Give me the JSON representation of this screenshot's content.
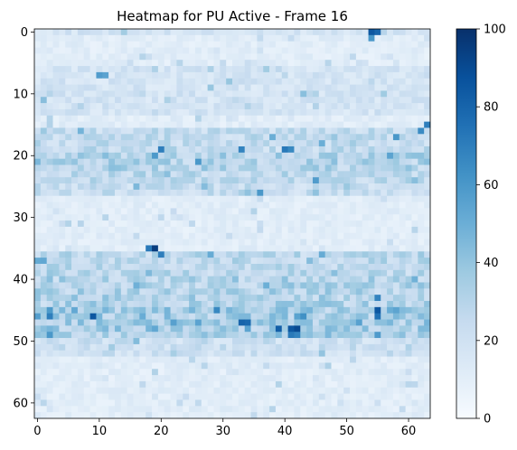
{
  "chart_data": {
    "type": "heatmap",
    "title": "Heatmap for PU Active - Frame 16",
    "rows": 63,
    "cols": 64,
    "xlabel": "",
    "ylabel": "",
    "x_ticks": [
      0,
      10,
      20,
      30,
      40,
      50,
      60
    ],
    "y_ticks": [
      0,
      10,
      20,
      30,
      40,
      50,
      60
    ],
    "colorbar": {
      "vmin": 0,
      "vmax": 100,
      "ticks": [
        0,
        20,
        40,
        60,
        80,
        100
      ],
      "colormap": "Blues"
    },
    "base_level": 12,
    "row_levels": [
      {
        "rows": [
          0
        ],
        "level": 20
      },
      {
        "rows": [
          6,
          7,
          8,
          9,
          10,
          11,
          12,
          13
        ],
        "level": 20
      },
      {
        "rows": [
          16,
          17,
          18,
          19
        ],
        "level": 28
      },
      {
        "rows": [
          20,
          21,
          22
        ],
        "level": 34
      },
      {
        "rows": [
          23,
          24
        ],
        "level": 30
      },
      {
        "rows": [
          25,
          26
        ],
        "level": 26
      },
      {
        "rows": [
          36,
          37,
          38,
          39
        ],
        "level": 30
      },
      {
        "rows": [
          40,
          41,
          42,
          43,
          44
        ],
        "level": 34
      },
      {
        "rows": [
          45,
          46,
          47,
          48,
          49
        ],
        "level": 38
      },
      {
        "rows": [
          50,
          51,
          52
        ],
        "level": 24
      }
    ],
    "hot_cells": [
      {
        "row": 0,
        "col": 54,
        "value": 85
      },
      {
        "row": 0,
        "col": 55,
        "value": 80
      },
      {
        "row": 1,
        "col": 54,
        "value": 60
      },
      {
        "row": 7,
        "col": 10,
        "value": 58
      },
      {
        "row": 7,
        "col": 11,
        "value": 55
      },
      {
        "row": 15,
        "col": 63,
        "value": 70
      },
      {
        "row": 16,
        "col": 62,
        "value": 65
      },
      {
        "row": 17,
        "col": 58,
        "value": 60
      },
      {
        "row": 19,
        "col": 20,
        "value": 70
      },
      {
        "row": 19,
        "col": 33,
        "value": 68
      },
      {
        "row": 19,
        "col": 40,
        "value": 72
      },
      {
        "row": 19,
        "col": 41,
        "value": 66
      },
      {
        "row": 21,
        "col": 26,
        "value": 60
      },
      {
        "row": 24,
        "col": 45,
        "value": 58
      },
      {
        "row": 26,
        "col": 36,
        "value": 60
      },
      {
        "row": 35,
        "col": 18,
        "value": 72
      },
      {
        "row": 35,
        "col": 19,
        "value": 95
      },
      {
        "row": 36,
        "col": 20,
        "value": 70
      },
      {
        "row": 43,
        "col": 55,
        "value": 68
      },
      {
        "row": 45,
        "col": 55,
        "value": 85
      },
      {
        "row": 46,
        "col": 9,
        "value": 85
      },
      {
        "row": 46,
        "col": 2,
        "value": 70
      },
      {
        "row": 46,
        "col": 55,
        "value": 75
      },
      {
        "row": 47,
        "col": 33,
        "value": 80
      },
      {
        "row": 47,
        "col": 34,
        "value": 78
      },
      {
        "row": 48,
        "col": 39,
        "value": 82
      },
      {
        "row": 48,
        "col": 41,
        "value": 85
      },
      {
        "row": 48,
        "col": 42,
        "value": 90
      },
      {
        "row": 49,
        "col": 41,
        "value": 72
      },
      {
        "row": 49,
        "col": 42,
        "value": 68
      }
    ],
    "seed": 16
  }
}
